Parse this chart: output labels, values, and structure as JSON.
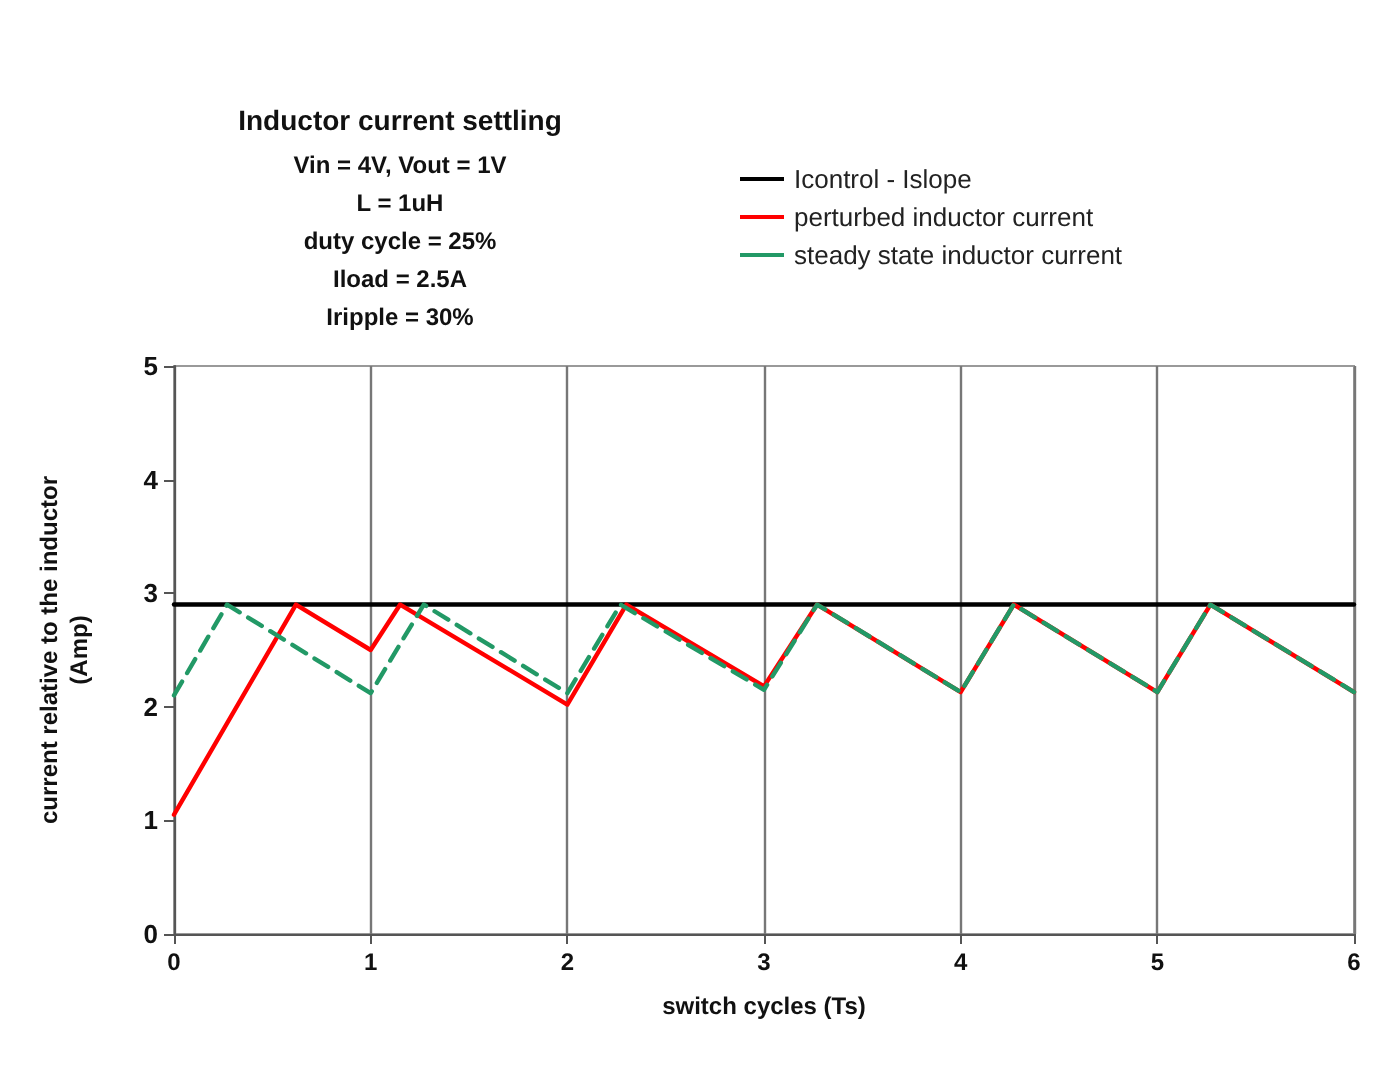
{
  "chart_data": {
    "type": "line",
    "title": "Inductor current settling",
    "subtitle": "Vin = 4V, Vout = 1V\nL = 1uH\nduty cycle = 25%\nIload = 2.5A\nIripple = 30%",
    "xlabel": "switch cycles (Ts)",
    "ylabel": "current relative to the inductor\n(Amp)",
    "series": [
      {
        "name": "Icontrol - Islope",
        "color": "#000000",
        "x": [
          0,
          6
        ],
        "values": [
          2.9,
          2.9
        ],
        "line_style": "solid"
      },
      {
        "name": "perturbed inductor current",
        "color": "#ff0000",
        "x": [
          0,
          0.62,
          1,
          1.15,
          2,
          2.3,
          3,
          3.27,
          4,
          4.27,
          5,
          5.27,
          6
        ],
        "values": [
          1.05,
          2.9,
          2.5,
          2.9,
          2.02,
          2.9,
          2.18,
          2.9,
          2.13,
          2.9,
          2.13,
          2.9,
          2.13
        ],
        "line_style": "solid"
      },
      {
        "name": "steady state inductor current",
        "color": "#229966",
        "x": [
          0,
          0.27,
          1,
          1.27,
          2,
          2.27,
          3,
          3.27,
          4,
          4.27,
          5,
          5.27,
          6
        ],
        "values": [
          2.1,
          2.9,
          2.12,
          2.9,
          2.12,
          2.9,
          2.15,
          2.9,
          2.13,
          2.9,
          2.13,
          2.9,
          2.13
        ],
        "line_style": "dashed"
      }
    ],
    "xlim": [
      0,
      6
    ],
    "xticks": [
      0,
      1,
      2,
      3,
      4,
      5,
      6
    ],
    "ylim": [
      0,
      5
    ],
    "yticks": [
      0,
      1,
      2,
      3,
      4,
      5
    ],
    "grid": "x",
    "legend": "top right",
    "marker": "none"
  }
}
